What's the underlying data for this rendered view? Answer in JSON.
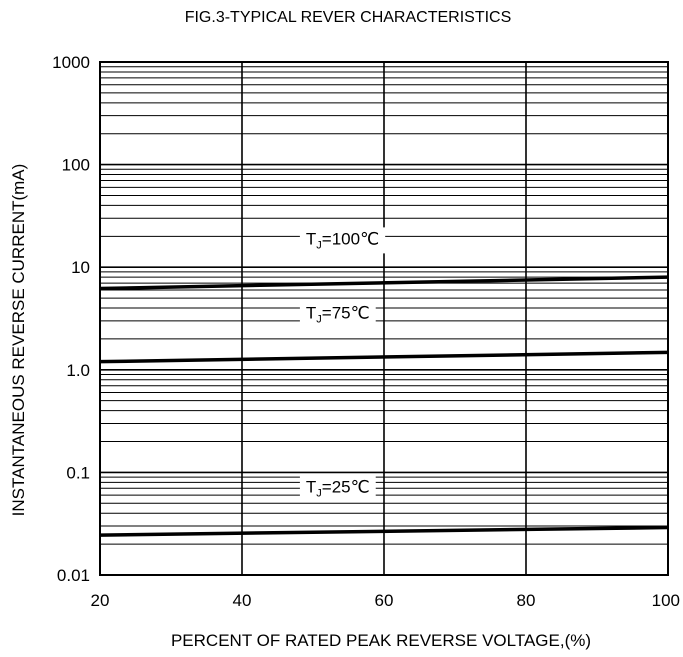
{
  "chart_data": {
    "type": "line",
    "title": "FIG.3-TYPICAL REVER CHARACTERISTICS",
    "xlabel": "PERCENT OF RATED PEAK REVERSE VOLTAGE,(%)",
    "ylabel": "INSTANTANEOUS REVERSE CURRENT(mA)",
    "xlim": [
      20,
      100
    ],
    "ylim": [
      0.01,
      1000
    ],
    "y_scale": "log",
    "grid": true,
    "x_ticks": [
      20,
      40,
      60,
      80,
      100
    ],
    "x_tick_labels": [
      "20",
      "40",
      "60",
      "80",
      "100"
    ],
    "y_ticks": [
      0.01,
      0.1,
      1,
      10,
      100,
      1000
    ],
    "y_tick_labels": [
      "0.01",
      "0.1",
      "1.0",
      "10",
      "100",
      "1000"
    ],
    "series": [
      {
        "name_main": "T",
        "name_sub": "J",
        "name_rest": "=100℃",
        "x": [
          20,
          100
        ],
        "y": [
          6.2,
          8.0
        ],
        "label_x": 49
      },
      {
        "name_main": "T",
        "name_sub": "J",
        "name_rest": "=75℃",
        "x": [
          20,
          100
        ],
        "y": [
          1.2,
          1.48
        ],
        "label_x": 49
      },
      {
        "name_main": "T",
        "name_sub": "J",
        "name_rest": "=25℃",
        "x": [
          20,
          100
        ],
        "y": [
          0.0245,
          0.029
        ],
        "label_x": 49
      }
    ],
    "colors": {
      "line": "#000000",
      "grid": "#000000",
      "background": "#ffffff"
    }
  }
}
